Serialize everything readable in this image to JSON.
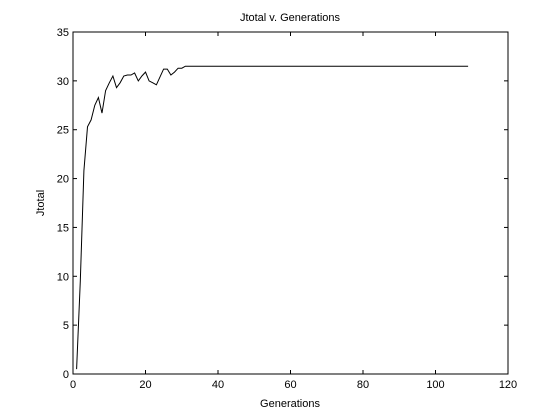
{
  "chart_data": {
    "type": "line",
    "title": "Jtotal v. Generations",
    "xlabel": "Generations",
    "ylabel": "Jtotal",
    "xlim": [
      0,
      120
    ],
    "ylim": [
      0,
      35
    ],
    "x_ticks": [
      0,
      20,
      40,
      60,
      80,
      100,
      120
    ],
    "y_ticks": [
      0,
      5,
      10,
      15,
      20,
      25,
      30,
      35
    ],
    "grid": false,
    "line_color": "#000000",
    "series": [
      {
        "x": [
          1,
          2,
          3,
          4,
          5,
          6,
          7,
          8,
          9,
          10,
          11,
          12,
          13,
          14,
          15,
          16,
          17,
          18,
          19,
          20,
          21,
          22,
          23,
          24,
          25,
          26,
          27,
          28,
          29,
          30,
          31,
          35,
          40,
          50,
          60,
          70,
          80,
          90,
          100,
          109
        ],
        "y": [
          0.5,
          9.5,
          20.8,
          25.3,
          26.0,
          27.5,
          28.3,
          26.7,
          29.0,
          29.8,
          30.5,
          29.3,
          29.8,
          30.5,
          30.6,
          30.6,
          30.8,
          30.0,
          30.5,
          30.9,
          30.0,
          29.8,
          29.6,
          30.4,
          31.2,
          31.2,
          30.6,
          30.9,
          31.3,
          31.3,
          31.5,
          31.5,
          31.5,
          31.5,
          31.5,
          31.5,
          31.5,
          31.5,
          31.5,
          31.5
        ]
      }
    ]
  }
}
